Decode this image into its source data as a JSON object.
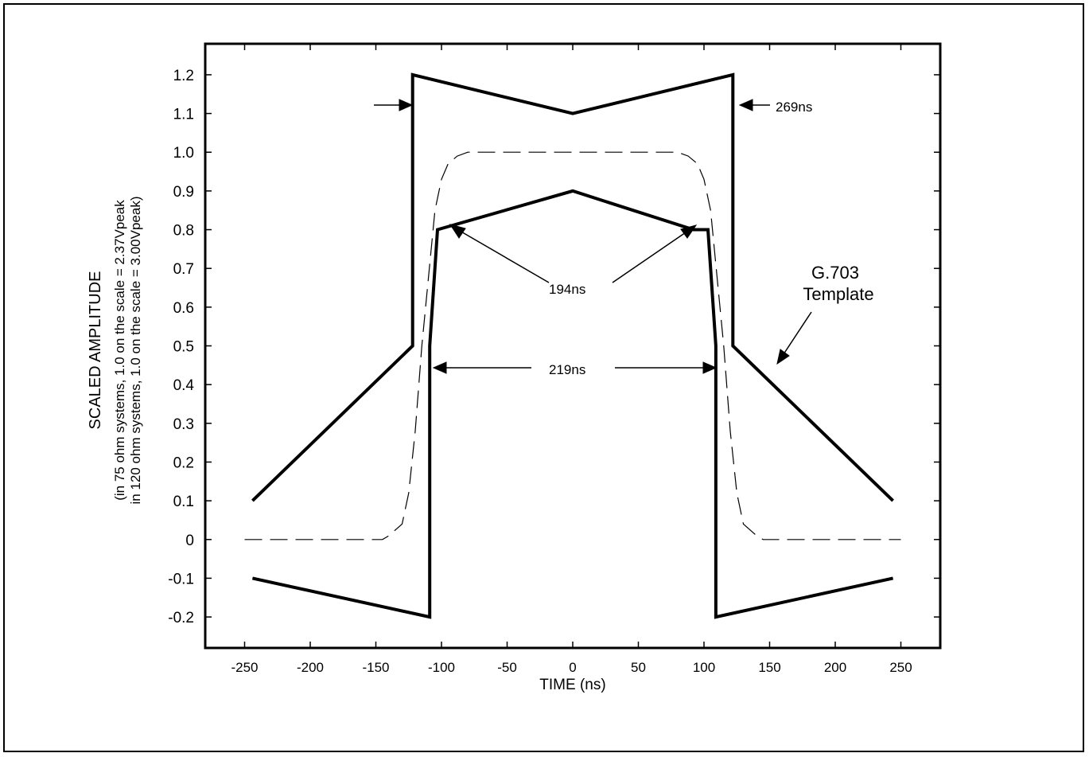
{
  "chart_data": {
    "type": "line",
    "title": "",
    "xlabel": "TIME (ns)",
    "ylabel": "SCALED AMPLITUDE",
    "ylabel_notes": [
      "(in 75 ohm systems, 1.0  on the scale = 2.37Vpeak",
      "in 120 ohm systems, 1.0 on the scale = 3.00Vpeak)"
    ],
    "xlim": [
      -280,
      280
    ],
    "ylim": [
      -0.28,
      1.28
    ],
    "x_ticks": [
      -250,
      -200,
      -150,
      -100,
      -50,
      0,
      50,
      100,
      150,
      200,
      250
    ],
    "x_tick_labels": [
      "-250",
      "-200",
      "-150",
      "-100",
      "-50",
      "0",
      "50",
      "100",
      "150",
      "200",
      "250"
    ],
    "y_ticks": [
      -0.2,
      -0.1,
      0,
      0.1,
      0.2,
      0.3,
      0.4,
      0.5,
      0.6,
      0.7,
      0.8,
      0.9,
      1.0,
      1.1,
      1.2
    ],
    "y_tick_labels": [
      "-0.2",
      "-0.1",
      "0",
      "0.1",
      "0.2",
      "0.3",
      "0.4",
      "0.5",
      "0.6",
      "0.7",
      "0.8",
      "0.9",
      "1.0",
      "1.1",
      "1.2"
    ],
    "grid": false,
    "series": [
      {
        "style": "solid-thick",
        "x": [
          -244,
          -122,
          -122,
          0,
          122,
          122,
          244
        ],
        "y": [
          0.1,
          0.5,
          1.2,
          1.1,
          1.2,
          0.5,
          0.1
        ]
      },
      {
        "style": "solid-thick",
        "x": [
          -244,
          -109,
          -109,
          -103,
          0,
          92,
          103,
          109,
          109,
          244
        ],
        "y": [
          -0.1,
          -0.2,
          0.5,
          0.8,
          0.9,
          0.8,
          0.8,
          0.5,
          -0.2,
          -0.1
        ]
      },
      {
        "style": "dashed",
        "x": [
          -250,
          -145,
          -140,
          -130,
          -125,
          -120,
          -115,
          -105,
          -100,
          -95,
          -88,
          -80,
          80,
          88,
          95,
          100,
          105,
          115,
          120,
          125,
          130,
          140,
          145,
          250
        ],
        "y": [
          0,
          0,
          0.01,
          0.04,
          0.12,
          0.28,
          0.5,
          0.85,
          0.93,
          0.97,
          0.99,
          1.0,
          1.0,
          0.99,
          0.97,
          0.93,
          0.85,
          0.5,
          0.28,
          0.12,
          0.04,
          0.01,
          0,
          0
        ]
      }
    ],
    "annotations": [
      {
        "text": "269ns"
      },
      {
        "text": "194ns"
      },
      {
        "text": "219ns"
      },
      {
        "text": "G.703"
      },
      {
        "text": "Template"
      }
    ]
  }
}
